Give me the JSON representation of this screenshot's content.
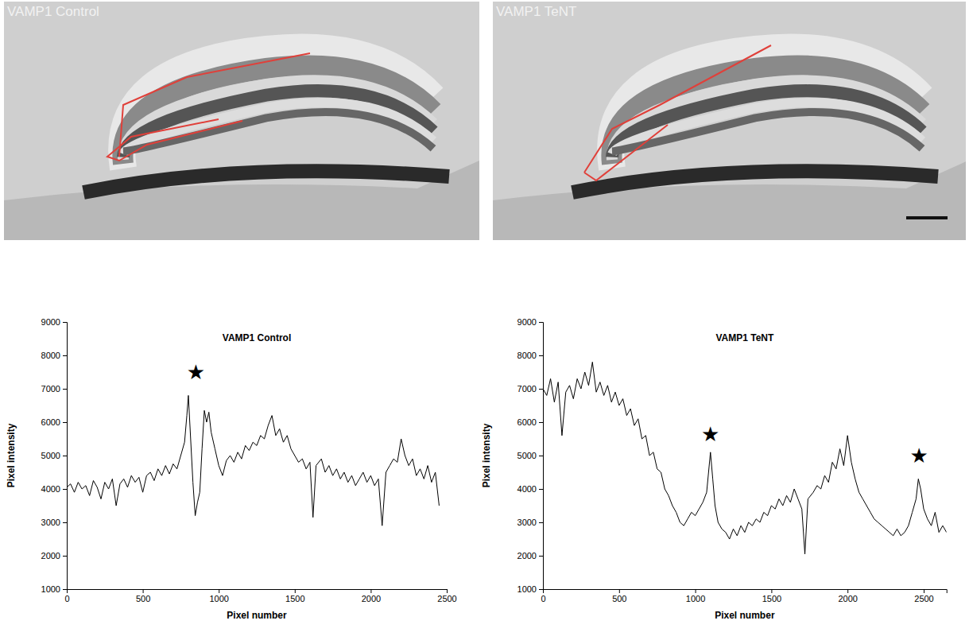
{
  "images": [
    {
      "label": "VAMP1 Control"
    },
    {
      "label": "VAMP1 TeNT"
    }
  ],
  "chart_data": [
    {
      "type": "line",
      "title": "VAMP1 Control",
      "xlabel": "Pixel number",
      "ylabel": "Pixel intensity",
      "color": "#000000",
      "xlim": [
        0,
        2500
      ],
      "ylim": [
        1000,
        9000
      ],
      "xticks": [
        0,
        500,
        1000,
        1500,
        2000,
        2500
      ],
      "yticks": [
        1000,
        2000,
        3000,
        4000,
        5000,
        6000,
        7000,
        8000,
        9000
      ],
      "x": [
        0,
        25,
        50,
        75,
        100,
        125,
        150,
        175,
        200,
        225,
        250,
        275,
        300,
        325,
        350,
        375,
        400,
        425,
        450,
        475,
        500,
        525,
        550,
        575,
        600,
        625,
        650,
        675,
        700,
        725,
        750,
        775,
        790,
        800,
        815,
        830,
        845,
        860,
        875,
        890,
        905,
        920,
        935,
        950,
        975,
        1000,
        1025,
        1050,
        1075,
        1100,
        1125,
        1150,
        1175,
        1200,
        1225,
        1250,
        1275,
        1300,
        1325,
        1350,
        1375,
        1400,
        1425,
        1450,
        1475,
        1500,
        1525,
        1550,
        1575,
        1600,
        1620,
        1640,
        1675,
        1700,
        1725,
        1750,
        1775,
        1800,
        1825,
        1850,
        1875,
        1900,
        1925,
        1950,
        1975,
        2000,
        2025,
        2050,
        2075,
        2100,
        2125,
        2150,
        2175,
        2200,
        2225,
        2250,
        2275,
        2300,
        2325,
        2350,
        2375,
        2400,
        2425,
        2450
      ],
      "values": [
        4050,
        4150,
        3900,
        4200,
        4000,
        4100,
        3800,
        4250,
        4050,
        3700,
        4200,
        4000,
        4300,
        3500,
        4150,
        4300,
        4050,
        4400,
        4200,
        4350,
        3900,
        4400,
        4500,
        4250,
        4600,
        4400,
        4700,
        4450,
        4750,
        4600,
        5000,
        5400,
        6200,
        6800,
        5500,
        4200,
        3200,
        3600,
        3900,
        5200,
        6350,
        6000,
        6300,
        5700,
        5200,
        4700,
        4400,
        4850,
        5000,
        4800,
        5100,
        4900,
        5300,
        5150,
        5400,
        5300,
        5600,
        5500,
        5900,
        6200,
        5600,
        5800,
        5400,
        5600,
        5200,
        5000,
        4800,
        4900,
        4600,
        4800,
        3150,
        4700,
        4900,
        4500,
        4700,
        4400,
        4600,
        4300,
        4500,
        4200,
        4400,
        4100,
        4300,
        4500,
        4200,
        4400,
        4100,
        4300,
        2900,
        4500,
        4700,
        4900,
        4800,
        5500,
        5000,
        4700,
        4900,
        4400,
        4600,
        4300,
        4700,
        4200,
        4500,
        3500
      ],
      "annotations": [
        {
          "text": "★",
          "x": 850,
          "y": 7500
        }
      ]
    },
    {
      "type": "line",
      "title": "VAMP1 TeNT",
      "xlabel": "Pixel number",
      "ylabel": "Pixel intensity",
      "color": "#000000",
      "xlim": [
        0,
        2650
      ],
      "ylim": [
        1000,
        9000
      ],
      "xticks": [
        0,
        500,
        1000,
        1500,
        2000,
        2500
      ],
      "yticks": [
        1000,
        2000,
        3000,
        4000,
        5000,
        6000,
        7000,
        8000,
        9000
      ],
      "x": [
        0,
        25,
        50,
        75,
        100,
        125,
        150,
        175,
        200,
        225,
        250,
        275,
        300,
        325,
        350,
        375,
        400,
        425,
        450,
        475,
        500,
        525,
        550,
        575,
        600,
        625,
        650,
        675,
        700,
        725,
        750,
        775,
        800,
        825,
        850,
        875,
        900,
        925,
        950,
        975,
        1000,
        1025,
        1050,
        1075,
        1100,
        1115,
        1130,
        1150,
        1175,
        1200,
        1225,
        1250,
        1275,
        1300,
        1325,
        1350,
        1375,
        1400,
        1425,
        1450,
        1475,
        1500,
        1525,
        1550,
        1575,
        1600,
        1625,
        1650,
        1675,
        1700,
        1720,
        1740,
        1775,
        1800,
        1825,
        1850,
        1875,
        1900,
        1925,
        1950,
        1975,
        2000,
        2025,
        2050,
        2075,
        2100,
        2125,
        2150,
        2175,
        2200,
        2225,
        2250,
        2275,
        2300,
        2325,
        2350,
        2375,
        2400,
        2425,
        2450,
        2465,
        2480,
        2500,
        2525,
        2550,
        2575,
        2600,
        2625,
        2650
      ],
      "values": [
        7000,
        6800,
        7300,
        6600,
        7200,
        5600,
        6900,
        7100,
        6700,
        7300,
        7000,
        7500,
        7100,
        7800,
        6900,
        7200,
        6800,
        7100,
        6600,
        6900,
        6500,
        6700,
        6200,
        6400,
        5900,
        6100,
        5500,
        5600,
        5000,
        5100,
        4600,
        4500,
        4000,
        3800,
        3500,
        3300,
        3000,
        2900,
        3100,
        3300,
        3200,
        3400,
        3600,
        3900,
        5100,
        4300,
        3500,
        3000,
        2800,
        2700,
        2500,
        2800,
        2600,
        2900,
        2700,
        3000,
        2900,
        3100,
        3000,
        3300,
        3200,
        3500,
        3400,
        3700,
        3500,
        3800,
        3600,
        4000,
        3700,
        3400,
        2050,
        3700,
        3900,
        4100,
        4000,
        4400,
        4200,
        4800,
        4600,
        5200,
        4700,
        5600,
        4800,
        4300,
        3900,
        3700,
        3500,
        3300,
        3100,
        3000,
        2900,
        2800,
        2700,
        2600,
        2800,
        2600,
        2700,
        2900,
        3300,
        3700,
        4300,
        4000,
        3400,
        3100,
        2900,
        3300,
        2700,
        2900,
        2700
      ],
      "annotations": [
        {
          "text": "★",
          "x": 1100,
          "y": 5650
        },
        {
          "text": "★",
          "x": 2470,
          "y": 5000
        }
      ]
    }
  ]
}
